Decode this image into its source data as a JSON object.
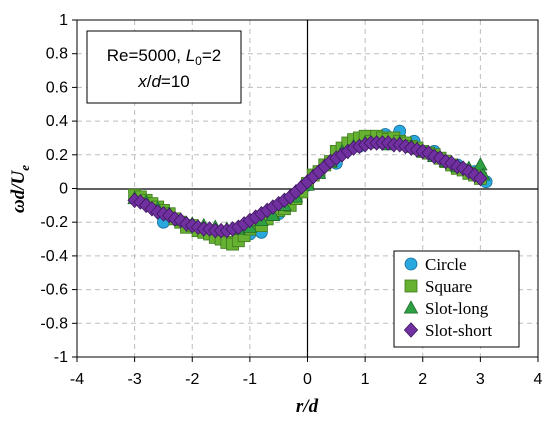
{
  "chart_data": {
    "type": "scatter",
    "xlabel": "r/d",
    "ylabel": "ωd/U_e",
    "xlim": [
      -4,
      4
    ],
    "ylim": [
      -1,
      1
    ],
    "x_ticks": [
      "-4",
      "-3",
      "-2",
      "-1",
      "0",
      "1",
      "2",
      "3",
      "4"
    ],
    "y_ticks": [
      "-1",
      "-0.8",
      "-0.6",
      "-0.4",
      "-0.2",
      "0",
      "0.2",
      "0.4",
      "0.6",
      "0.8",
      "1"
    ],
    "grid": true,
    "annotation": {
      "line1": {
        "re": "Re=5000, ",
        "l": "L",
        "sub": "0",
        "eq": "=2"
      },
      "line2": {
        "x": "x",
        "slash": "/",
        "d": "d",
        "val": "=10"
      }
    },
    "legend_position": "bottom-right",
    "series": [
      {
        "name": "Circle",
        "marker": "circle",
        "color": "#29a8e0",
        "stroke": "#1a6c96",
        "points": [
          [
            -2.5,
            -0.2
          ],
          [
            -1.5,
            -0.28
          ],
          [
            -1.0,
            -0.27
          ],
          [
            -0.8,
            -0.26
          ],
          [
            -0.5,
            -0.15
          ],
          [
            0.0,
            0.02
          ],
          [
            0.5,
            0.15
          ],
          [
            0.9,
            0.25
          ],
          [
            1.15,
            0.31
          ],
          [
            1.35,
            0.32
          ],
          [
            1.6,
            0.34
          ],
          [
            1.85,
            0.28
          ],
          [
            2.2,
            0.22
          ],
          [
            2.6,
            0.14
          ],
          [
            2.9,
            0.1
          ],
          [
            3.1,
            0.04
          ]
        ]
      },
      {
        "name": "Square",
        "marker": "square",
        "color": "#66b032",
        "stroke": "#3d7a1c",
        "points": [
          [
            -3.0,
            -0.04
          ],
          [
            -2.9,
            -0.05
          ],
          [
            -2.8,
            -0.07
          ],
          [
            -2.7,
            -0.09
          ],
          [
            -2.6,
            -0.11
          ],
          [
            -2.5,
            -0.13
          ],
          [
            -2.4,
            -0.15
          ],
          [
            -2.3,
            -0.18
          ],
          [
            -2.2,
            -0.2
          ],
          [
            -2.1,
            -0.23
          ],
          [
            -2.0,
            -0.22
          ],
          [
            -1.9,
            -0.25
          ],
          [
            -1.8,
            -0.26
          ],
          [
            -1.7,
            -0.27
          ],
          [
            -1.6,
            -0.29
          ],
          [
            -1.5,
            -0.3
          ],
          [
            -1.4,
            -0.32
          ],
          [
            -1.3,
            -0.33
          ],
          [
            -1.2,
            -0.31
          ],
          [
            -1.1,
            -0.28
          ],
          [
            -1.0,
            -0.24
          ],
          [
            -0.9,
            -0.19
          ],
          [
            -0.8,
            -0.22
          ],
          [
            -0.7,
            -0.18
          ],
          [
            -0.6,
            -0.15
          ],
          [
            -0.5,
            -0.13
          ],
          [
            -0.4,
            -0.12
          ],
          [
            -0.3,
            -0.1
          ],
          [
            -0.2,
            -0.06
          ],
          [
            -0.1,
            -0.02
          ],
          [
            0.0,
            0.03
          ],
          [
            0.1,
            0.08
          ],
          [
            0.2,
            0.1
          ],
          [
            0.3,
            0.14
          ],
          [
            0.4,
            0.16
          ],
          [
            0.5,
            0.22
          ],
          [
            0.6,
            0.24
          ],
          [
            0.7,
            0.27
          ],
          [
            0.8,
            0.29
          ],
          [
            0.9,
            0.3
          ],
          [
            1.0,
            0.31
          ],
          [
            1.1,
            0.28
          ],
          [
            1.2,
            0.31
          ],
          [
            1.3,
            0.3
          ],
          [
            1.4,
            0.29
          ],
          [
            1.5,
            0.3
          ],
          [
            1.6,
            0.28
          ],
          [
            1.7,
            0.27
          ],
          [
            1.8,
            0.25
          ],
          [
            1.9,
            0.24
          ],
          [
            2.0,
            0.22
          ],
          [
            2.1,
            0.21
          ],
          [
            2.2,
            0.2
          ],
          [
            2.3,
            0.18
          ],
          [
            2.4,
            0.16
          ],
          [
            2.5,
            0.14
          ],
          [
            2.6,
            0.12
          ],
          [
            2.7,
            0.11
          ],
          [
            2.8,
            0.09
          ],
          [
            2.9,
            0.08
          ],
          [
            3.0,
            0.06
          ]
        ]
      },
      {
        "name": "Slot-long",
        "marker": "triangle",
        "color": "#2ea043",
        "stroke": "#1c6b2a",
        "points": [
          [
            -3.0,
            -0.06
          ],
          [
            -2.8,
            -0.08
          ],
          [
            -2.6,
            -0.12
          ],
          [
            -2.4,
            -0.15
          ],
          [
            -2.2,
            -0.19
          ],
          [
            -2.0,
            -0.21
          ],
          [
            -1.8,
            -0.22
          ],
          [
            -1.6,
            -0.23
          ],
          [
            -1.4,
            -0.24
          ],
          [
            -1.2,
            -0.24
          ],
          [
            -1.0,
            -0.23
          ],
          [
            -0.8,
            -0.19
          ],
          [
            -0.6,
            -0.16
          ],
          [
            -0.4,
            -0.1
          ],
          [
            -0.2,
            -0.05
          ],
          [
            0.0,
            0.02
          ],
          [
            0.2,
            0.09
          ],
          [
            0.4,
            0.16
          ],
          [
            0.6,
            0.22
          ],
          [
            0.8,
            0.25
          ],
          [
            1.0,
            0.27
          ],
          [
            1.2,
            0.27
          ],
          [
            1.4,
            0.26
          ],
          [
            1.6,
            0.27
          ],
          [
            1.8,
            0.25
          ],
          [
            2.0,
            0.22
          ],
          [
            2.2,
            0.19
          ],
          [
            2.4,
            0.16
          ],
          [
            2.6,
            0.13
          ],
          [
            2.8,
            0.12
          ],
          [
            3.0,
            0.14
          ],
          [
            3.05,
            0.08
          ]
        ]
      },
      {
        "name": "Slot-short",
        "marker": "diamond",
        "color": "#7030a0",
        "stroke": "#3f1761",
        "points": [
          [
            -3.0,
            -0.07
          ],
          [
            -2.9,
            -0.08
          ],
          [
            -2.8,
            -0.1
          ],
          [
            -2.7,
            -0.12
          ],
          [
            -2.6,
            -0.14
          ],
          [
            -2.5,
            -0.15
          ],
          [
            -2.4,
            -0.16
          ],
          [
            -2.3,
            -0.18
          ],
          [
            -2.2,
            -0.19
          ],
          [
            -2.1,
            -0.21
          ],
          [
            -2.0,
            -0.22
          ],
          [
            -1.9,
            -0.23
          ],
          [
            -1.8,
            -0.24
          ],
          [
            -1.7,
            -0.24
          ],
          [
            -1.6,
            -0.25
          ],
          [
            -1.5,
            -0.25
          ],
          [
            -1.4,
            -0.25
          ],
          [
            -1.3,
            -0.24
          ],
          [
            -1.2,
            -0.23
          ],
          [
            -1.1,
            -0.21
          ],
          [
            -1.0,
            -0.19
          ],
          [
            -0.9,
            -0.17
          ],
          [
            -0.8,
            -0.15
          ],
          [
            -0.7,
            -0.13
          ],
          [
            -0.6,
            -0.11
          ],
          [
            -0.5,
            -0.09
          ],
          [
            -0.4,
            -0.07
          ],
          [
            -0.3,
            -0.05
          ],
          [
            -0.2,
            -0.02
          ],
          [
            -0.1,
            0.01
          ],
          [
            0.0,
            0.04
          ],
          [
            0.1,
            0.07
          ],
          [
            0.2,
            0.1
          ],
          [
            0.3,
            0.13
          ],
          [
            0.4,
            0.16
          ],
          [
            0.5,
            0.18
          ],
          [
            0.6,
            0.2
          ],
          [
            0.7,
            0.22
          ],
          [
            0.8,
            0.24
          ],
          [
            0.9,
            0.25
          ],
          [
            1.0,
            0.26
          ],
          [
            1.1,
            0.27
          ],
          [
            1.2,
            0.27
          ],
          [
            1.3,
            0.27
          ],
          [
            1.4,
            0.27
          ],
          [
            1.5,
            0.26
          ],
          [
            1.6,
            0.26
          ],
          [
            1.7,
            0.25
          ],
          [
            1.8,
            0.24
          ],
          [
            1.9,
            0.23
          ],
          [
            2.0,
            0.22
          ],
          [
            2.1,
            0.21
          ],
          [
            2.2,
            0.19
          ],
          [
            2.3,
            0.18
          ],
          [
            2.4,
            0.16
          ],
          [
            2.5,
            0.15
          ],
          [
            2.6,
            0.13
          ],
          [
            2.7,
            0.12
          ],
          [
            2.8,
            0.1
          ],
          [
            2.9,
            0.08
          ],
          [
            3.0,
            0.06
          ]
        ]
      }
    ]
  }
}
